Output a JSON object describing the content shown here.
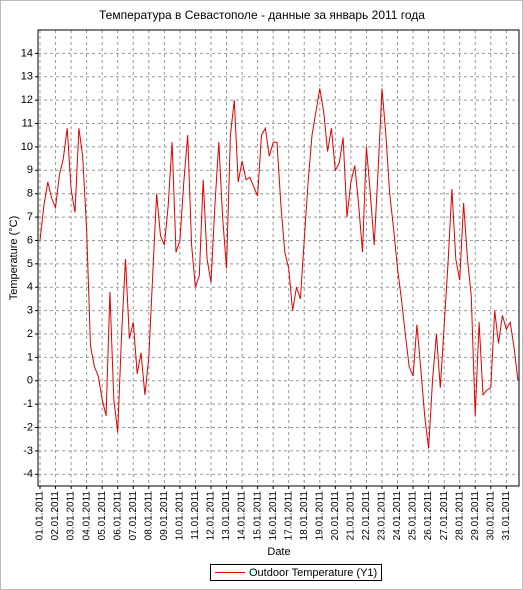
{
  "chart_data": {
    "type": "line",
    "title": "Температура в Севастополе - данные за январь 2011 года",
    "x_label": "Date",
    "y_label": "Temperature (°C)",
    "grid": true,
    "legend": "bottom",
    "ylim": [
      -4.5,
      15
    ],
    "yticks": [
      -4,
      -3,
      -2,
      -1,
      0,
      1,
      2,
      3,
      4,
      5,
      6,
      7,
      8,
      9,
      10,
      11,
      12,
      13,
      14
    ],
    "categories": [
      "01.01.2011",
      null,
      null,
      null,
      "02.01.2011",
      null,
      null,
      null,
      "03.01.2011",
      null,
      null,
      null,
      "04.01.2011",
      null,
      null,
      null,
      "05.01.2011",
      null,
      null,
      null,
      "06.01.2011",
      null,
      null,
      null,
      "07.01.2011",
      null,
      null,
      null,
      "08.01.2011",
      null,
      null,
      null,
      "09.01.2011",
      null,
      null,
      null,
      "10.01.2011",
      null,
      null,
      null,
      "11.01.2011",
      null,
      null,
      null,
      "12.01.2011",
      null,
      null,
      null,
      "13.01.2011",
      null,
      null,
      null,
      "14.01.2011",
      null,
      null,
      null,
      "15.01.2011",
      null,
      null,
      null,
      "16.01.2011",
      null,
      null,
      null,
      "17.01.2011",
      null,
      null,
      null,
      "18.01.2011",
      null,
      null,
      null,
      "19.01.2011",
      null,
      null,
      null,
      "20.01.2011",
      null,
      null,
      null,
      "21.01.2011",
      null,
      null,
      null,
      "22.01.2011",
      null,
      null,
      null,
      "23.01.2011",
      null,
      null,
      null,
      "24.01.2011",
      null,
      null,
      null,
      "25.01.2011",
      null,
      null,
      null,
      "26.01.2011",
      null,
      null,
      null,
      "27.01.2011",
      null,
      null,
      null,
      "28.01.2011",
      null,
      null,
      null,
      "29.01.2011",
      null,
      null,
      null,
      "30.01.2011",
      null,
      null,
      null,
      "31.01.2011",
      null,
      null,
      null
    ],
    "series": [
      {
        "name": "Outdoor Temperature (Y1)",
        "color": "#e00000",
        "values": [
          6,
          7.5,
          8.5,
          7.8,
          7.4,
          8.8,
          9.5,
          10.8,
          8.2,
          7.2,
          10.8,
          9.6,
          6.5,
          1.5,
          0.6,
          0.2,
          -0.8,
          -1.5,
          3.8,
          -0.8,
          -2.2,
          2,
          5.2,
          1.8,
          2.5,
          0.3,
          1.2,
          -0.6,
          1,
          4.5,
          8,
          6.2,
          5.8,
          7.5,
          10.2,
          5.5,
          6,
          8.5,
          10.5,
          5.8,
          4,
          4.5,
          8.6,
          5.2,
          4.2,
          7.5,
          10.2,
          7,
          4.8,
          10.5,
          12,
          8.5,
          9.4,
          8.6,
          8.7,
          8.3,
          7.9,
          10.5,
          10.8,
          9.6,
          10.2,
          10.2,
          7.5,
          5.5,
          4.8,
          3,
          4,
          3.5,
          6,
          8.5,
          10.5,
          11.5,
          12.5,
          11.5,
          9.8,
          10.8,
          9,
          9.3,
          10.4,
          7,
          8.5,
          9.2,
          7.5,
          5.5,
          10,
          8,
          5.8,
          9,
          12.5,
          10.5,
          8,
          6.5,
          4.8,
          3.5,
          2,
          0.6,
          0.2,
          2.4,
          0.5,
          -1.5,
          -2.9,
          0,
          2,
          -0.3,
          2.3,
          5,
          8.2,
          5.2,
          4.3,
          7.6,
          5.2,
          3.6,
          -1.5,
          2.5,
          -0.6,
          -0.4,
          -0.3,
          3,
          1.6,
          2.8,
          2.2,
          2.5,
          1.4,
          0
        ]
      }
    ]
  }
}
